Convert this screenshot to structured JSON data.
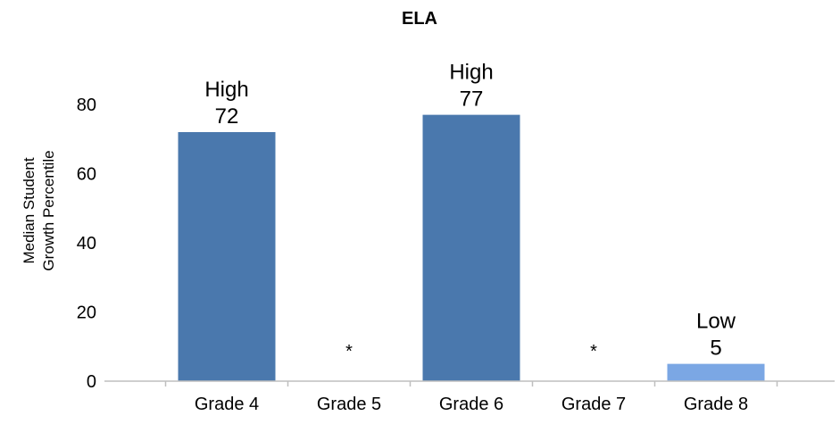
{
  "chart_data": {
    "type": "bar",
    "title": "ELA",
    "ylabel_lines": [
      "Median Student",
      "Growth Percentile"
    ],
    "xlabel": "",
    "categories": [
      "Grade 4",
      "Grade 5",
      "Grade 6",
      "Grade 7",
      "Grade 8"
    ],
    "values": [
      72,
      null,
      77,
      null,
      5
    ],
    "bar_labels": [
      "High",
      "",
      "High",
      "",
      "Low"
    ],
    "value_labels": [
      "72",
      "*",
      "77",
      "*",
      "5"
    ],
    "bar_colors": [
      "#4a78ad",
      null,
      "#4a78ad",
      null,
      "#7ba7e4"
    ],
    "ylim": [
      0,
      80
    ],
    "yticks": [
      0,
      20,
      40,
      60,
      80
    ],
    "grid": false,
    "legend": "none"
  }
}
